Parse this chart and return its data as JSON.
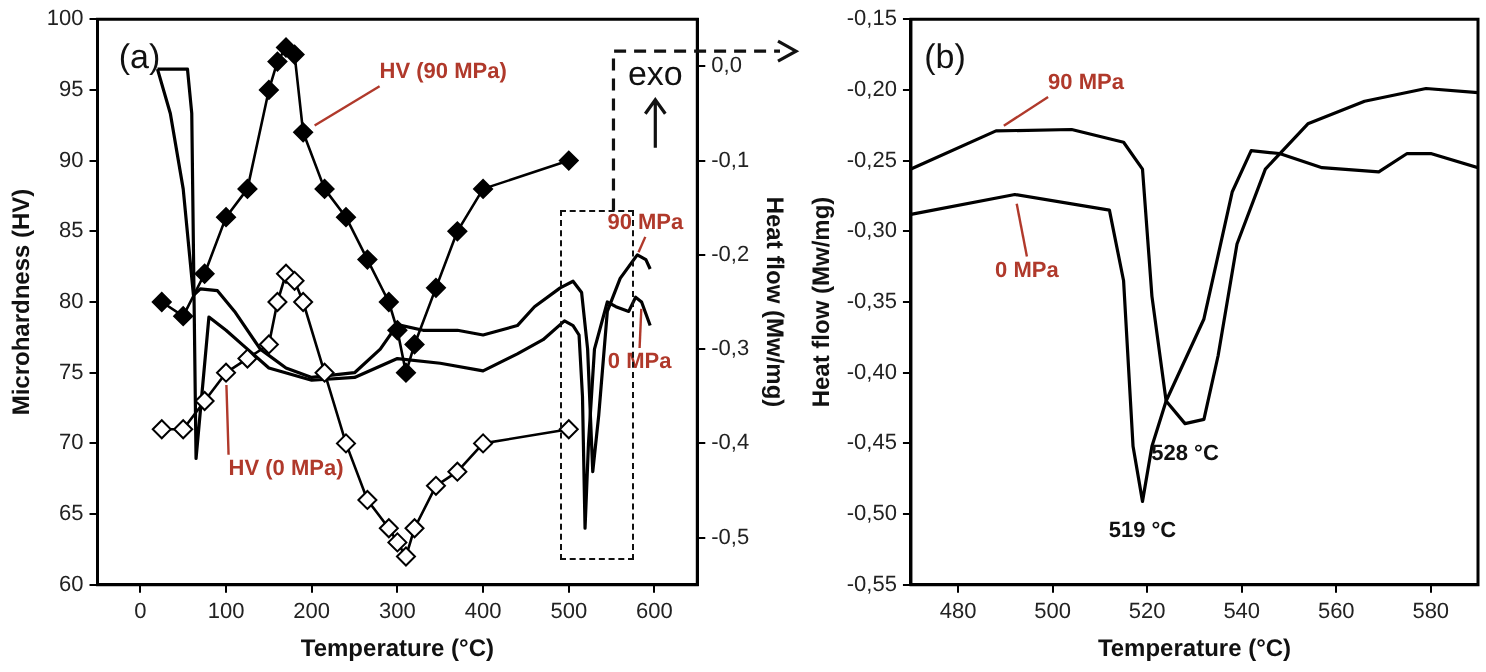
{
  "chart_data": [
    {
      "type": "line",
      "xlabel": "Temperature (°C)",
      "ylabel": "Microhardness (HV)",
      "y2label": "Heat flow (Mw/mg)",
      "xlim": [
        -50,
        650
      ],
      "xticks": [
        0,
        100,
        200,
        300,
        400,
        500,
        600
      ],
      "ylim": [
        60,
        100
      ],
      "yticks": [
        60,
        65,
        70,
        75,
        80,
        85,
        90,
        95,
        100
      ],
      "y2lim": [
        -0.55,
        0.05
      ],
      "y2ticks": [
        {
          "value": 0,
          "label": "0,0"
        },
        {
          "value": -0.1,
          "label": "-0,1"
        },
        {
          "value": -0.2,
          "label": "-0,2"
        },
        {
          "value": -0.3,
          "label": "-0,3"
        },
        {
          "value": -0.4,
          "label": "-0,4"
        },
        {
          "value": -0.5,
          "label": "-0,5"
        }
      ],
      "x": [
        25,
        50,
        75,
        100,
        125,
        150,
        160,
        170,
        180,
        190,
        215,
        240,
        265,
        290,
        300,
        310,
        320,
        345,
        370,
        400,
        500
      ],
      "series": [
        {
          "name": "HV (90 MPa)",
          "color": "#000000",
          "marker": "diamond",
          "values": [
            80,
            79,
            82,
            86,
            88,
            95,
            97,
            98,
            97.5,
            92,
            88,
            86,
            83,
            80,
            78,
            75,
            77,
            81,
            85,
            88,
            90
          ]
        },
        {
          "name": "HV (0 MPa)",
          "color": "#000000",
          "marker": "diamond",
          "values": [
            71,
            71,
            73,
            75,
            76,
            77,
            80,
            82,
            81.5,
            80,
            75,
            70,
            66,
            64,
            63,
            62,
            64,
            67,
            68,
            70,
            71
          ]
        },
        {
          "name": "90 MPa",
          "color": "#000000",
          "axis": "y2",
          "marker": "none",
          "x": [
            20,
            35,
            50,
            62,
            70,
            90,
            110,
            140,
            170,
            200,
            250,
            280,
            300,
            330,
            370,
            400,
            440,
            460,
            490,
            505,
            515,
            522,
            528,
            535,
            545,
            560,
            580,
            590,
            595
          ],
          "values": [
            -0.003,
            -0.05,
            -0.13,
            -0.243,
            -0.236,
            -0.238,
            -0.26,
            -0.3,
            -0.32,
            -0.33,
            -0.325,
            -0.3,
            -0.274,
            -0.28,
            -0.28,
            -0.285,
            -0.275,
            -0.255,
            -0.235,
            -0.228,
            -0.24,
            -0.3,
            -0.43,
            -0.37,
            -0.26,
            -0.225,
            -0.2,
            -0.205,
            -0.215
          ]
        },
        {
          "name": "0 MPa",
          "color": "#000000",
          "axis": "y2",
          "marker": "none",
          "x": [
            20,
            55,
            60,
            65,
            80,
            100,
            120,
            150,
            200,
            250,
            300,
            350,
            400,
            440,
            470,
            495,
            505,
            512,
            516,
            519,
            523,
            530,
            545,
            555,
            570,
            578,
            585,
            595
          ],
          "values": [
            -0.003,
            -0.003,
            -0.05,
            -0.416,
            -0.266,
            -0.28,
            -0.296,
            -0.32,
            -0.333,
            -0.33,
            -0.31,
            -0.315,
            -0.323,
            -0.305,
            -0.29,
            -0.27,
            -0.275,
            -0.285,
            -0.35,
            -0.49,
            -0.4,
            -0.3,
            -0.25,
            -0.255,
            -0.26,
            -0.245,
            -0.25,
            -0.275
          ]
        }
      ],
      "annotations": [
        "(a)",
        "exo"
      ]
    },
    {
      "type": "line",
      "xlabel": "Temperature (°C)",
      "ylabel": "Heat flow (Mw/mg)",
      "xlim": [
        470,
        590
      ],
      "xticks": [
        480,
        500,
        520,
        540,
        560,
        580
      ],
      "ylim": [
        -0.55,
        -0.15
      ],
      "yticks": [
        {
          "value": -0.15,
          "label": "-0,15"
        },
        {
          "value": -0.2,
          "label": "-0,20"
        },
        {
          "value": -0.25,
          "label": "-0,25"
        },
        {
          "value": -0.3,
          "label": "-0,30"
        },
        {
          "value": -0.35,
          "label": "-0,35"
        },
        {
          "value": -0.4,
          "label": "-0,40"
        },
        {
          "value": -0.45,
          "label": "-0,45"
        },
        {
          "value": -0.5,
          "label": "-0,50"
        },
        {
          "value": -0.55,
          "label": "-0,55"
        }
      ],
      "series": [
        {
          "name": "90 MPa",
          "color": "#000000",
          "x": [
            470,
            488,
            504,
            515,
            519,
            521,
            524,
            528,
            532,
            535,
            539,
            545,
            554,
            566,
            579,
            590
          ],
          "values": [
            -0.256,
            -0.229,
            -0.228,
            -0.237,
            -0.256,
            -0.346,
            -0.42,
            -0.436,
            -0.433,
            -0.388,
            -0.309,
            -0.256,
            -0.224,
            -0.208,
            -0.199,
            -0.202
          ]
        },
        {
          "name": "0 MPa",
          "color": "#000000",
          "x": [
            470,
            492,
            512,
            515,
            517,
            519,
            521,
            524,
            532,
            538,
            542,
            548,
            557,
            569,
            575,
            580,
            590
          ],
          "values": [
            -0.288,
            -0.274,
            -0.285,
            -0.335,
            -0.452,
            -0.491,
            -0.452,
            -0.42,
            -0.362,
            -0.272,
            -0.243,
            -0.245,
            -0.255,
            -0.258,
            -0.245,
            -0.245,
            -0.255
          ]
        }
      ],
      "annotations": [
        "(b)",
        {
          "text": "519 °C",
          "x": 519,
          "y": -0.491
        },
        {
          "text": "528 °C",
          "x": 528,
          "y": -0.436
        }
      ]
    }
  ]
}
